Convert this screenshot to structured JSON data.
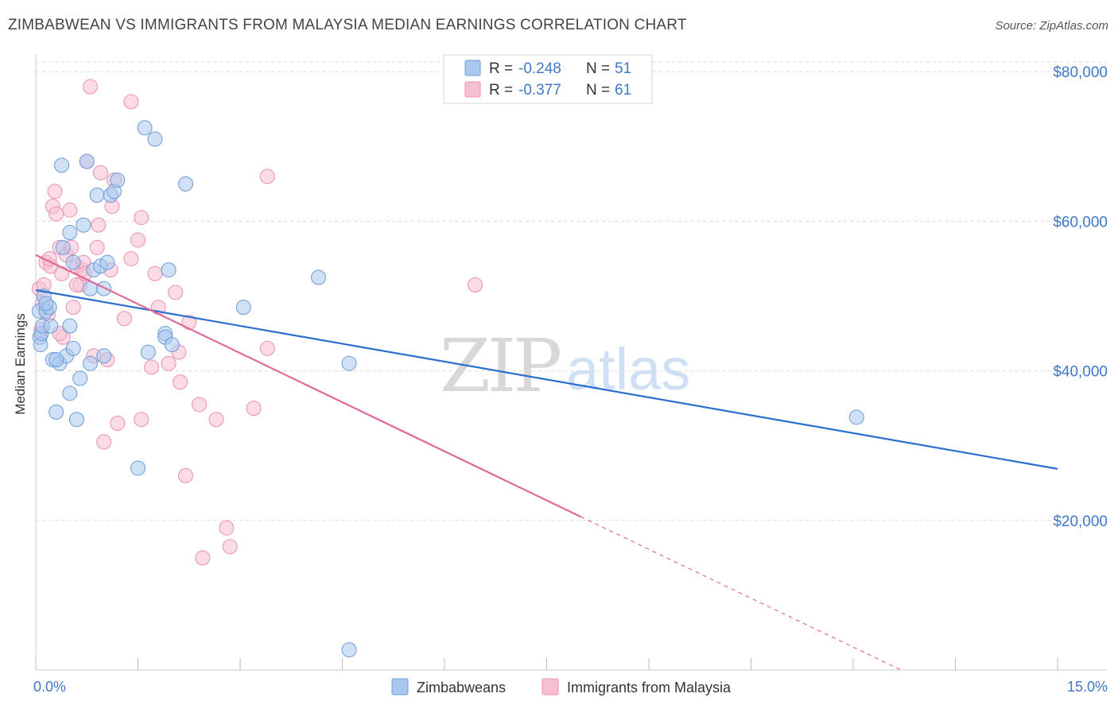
{
  "title": "ZIMBABWEAN VS IMMIGRANTS FROM MALAYSIA MEDIAN EARNINGS CORRELATION CHART",
  "source": "Source: ZipAtlas.com",
  "watermark": {
    "zip": "ZIP",
    "atlas": "atlas"
  },
  "colors": {
    "blue_fill": "#a9c8ef",
    "blue_stroke": "#6c9bd8",
    "blue_line": "#2a6fcf",
    "pink_fill": "#f7c0d2",
    "pink_stroke": "#ec8fb0",
    "pink_line": "#e0699a",
    "tick_label": "#3f78c8",
    "grid": "#d9d9d9"
  },
  "legend_top": {
    "rows": [
      {
        "r_label": "R =",
        "r_value": "-0.248",
        "n_label": "N =",
        "n_value": "51"
      },
      {
        "r_label": "R =",
        "r_value": "-0.377",
        "n_label": "N =",
        "n_value": "61"
      }
    ]
  },
  "legend_bottom": [
    "Zimbabweans",
    "Immigrants from Malaysia"
  ],
  "chart_data": {
    "type": "scatter",
    "title": "ZIMBABWEAN VS IMMIGRANTS FROM MALAYSIA MEDIAN EARNINGS CORRELATION CHART",
    "xlabel": "",
    "ylabel": "Median Earnings",
    "xlim": [
      0,
      15
    ],
    "ylim": [
      0,
      83000
    ],
    "x_tick_labels": [
      "0.0%",
      "15.0%"
    ],
    "y_ticks": [
      20000,
      40000,
      60000,
      80000
    ],
    "y_tick_labels": [
      "$20,000",
      "$40,000",
      "$60,000",
      "$80,000"
    ],
    "grid": true,
    "legend_position": "top-center",
    "series": [
      {
        "name": "Zimbabweans",
        "r": -0.248,
        "n": 51,
        "trend": {
          "x": [
            0,
            15
          ],
          "y": [
            50800,
            26900
          ]
        },
        "points": [
          [
            0.05,
            48000
          ],
          [
            0.06,
            44500
          ],
          [
            0.07,
            43500
          ],
          [
            0.08,
            45000
          ],
          [
            0.1,
            46000
          ],
          [
            0.12,
            50000
          ],
          [
            0.15,
            48000
          ],
          [
            0.2,
            48500
          ],
          [
            0.22,
            46000
          ],
          [
            0.25,
            41500
          ],
          [
            0.3,
            34500
          ],
          [
            0.35,
            41000
          ],
          [
            0.38,
            67500
          ],
          [
            0.4,
            56500
          ],
          [
            0.45,
            42000
          ],
          [
            0.5,
            46000
          ],
          [
            0.5,
            37000
          ],
          [
            0.55,
            43000
          ],
          [
            0.5,
            58500
          ],
          [
            0.55,
            54500
          ],
          [
            0.6,
            33500
          ],
          [
            0.65,
            39000
          ],
          [
            0.7,
            59500
          ],
          [
            0.75,
            68000
          ],
          [
            0.8,
            51000
          ],
          [
            0.8,
            41000
          ],
          [
            0.85,
            53500
          ],
          [
            0.9,
            63500
          ],
          [
            0.95,
            54000
          ],
          [
            1.0,
            51000
          ],
          [
            1.0,
            42000
          ],
          [
            1.05,
            54500
          ],
          [
            1.1,
            63500
          ],
          [
            1.15,
            64000
          ],
          [
            1.2,
            65500
          ],
          [
            1.5,
            27000
          ],
          [
            1.6,
            72500
          ],
          [
            1.65,
            42500
          ],
          [
            1.75,
            71000
          ],
          [
            1.9,
            45000
          ],
          [
            1.9,
            44500
          ],
          [
            1.95,
            53500
          ],
          [
            2.0,
            43500
          ],
          [
            2.2,
            65000
          ],
          [
            3.05,
            48500
          ],
          [
            4.15,
            52500
          ],
          [
            4.6,
            2700
          ],
          [
            4.6,
            41000
          ],
          [
            12.05,
            33800
          ],
          [
            0.15,
            49000
          ],
          [
            0.3,
            41500
          ]
        ]
      },
      {
        "name": "Immigrants from Malaysia",
        "r": -0.377,
        "n": 61,
        "trend": {
          "x": [
            0,
            8.0
          ],
          "y": [
            55500,
            20500
          ]
        },
        "trend_dashed": {
          "x": [
            8.0,
            15
          ],
          "y": [
            20500,
            -10000
          ]
        },
        "points": [
          [
            0.05,
            51000
          ],
          [
            0.08,
            45500
          ],
          [
            0.1,
            49000
          ],
          [
            0.12,
            51500
          ],
          [
            0.15,
            54500
          ],
          [
            0.18,
            47500
          ],
          [
            0.22,
            54000
          ],
          [
            0.25,
            62000
          ],
          [
            0.28,
            64000
          ],
          [
            0.3,
            61000
          ],
          [
            0.35,
            56500
          ],
          [
            0.38,
            53000
          ],
          [
            0.4,
            44500
          ],
          [
            0.45,
            55500
          ],
          [
            0.5,
            61500
          ],
          [
            0.52,
            56500
          ],
          [
            0.55,
            48500
          ],
          [
            0.6,
            54000
          ],
          [
            0.65,
            51500
          ],
          [
            0.68,
            53500
          ],
          [
            0.7,
            54500
          ],
          [
            0.72,
            53000
          ],
          [
            0.75,
            68000
          ],
          [
            0.8,
            78000
          ],
          [
            0.85,
            42000
          ],
          [
            0.9,
            56500
          ],
          [
            0.92,
            59500
          ],
          [
            0.95,
            66500
          ],
          [
            1.0,
            30500
          ],
          [
            1.05,
            41500
          ],
          [
            1.1,
            53500
          ],
          [
            1.12,
            62000
          ],
          [
            1.15,
            65500
          ],
          [
            1.2,
            33000
          ],
          [
            1.3,
            47000
          ],
          [
            1.4,
            76000
          ],
          [
            1.4,
            55000
          ],
          [
            1.5,
            57500
          ],
          [
            1.55,
            60500
          ],
          [
            1.55,
            33500
          ],
          [
            1.7,
            40500
          ],
          [
            1.75,
            53000
          ],
          [
            1.8,
            48500
          ],
          [
            1.95,
            41000
          ],
          [
            2.05,
            50500
          ],
          [
            2.1,
            42500
          ],
          [
            2.12,
            38500
          ],
          [
            2.2,
            26000
          ],
          [
            2.25,
            46500
          ],
          [
            2.4,
            35500
          ],
          [
            2.45,
            15000
          ],
          [
            2.65,
            33500
          ],
          [
            2.8,
            19000
          ],
          [
            2.85,
            16500
          ],
          [
            3.2,
            35000
          ],
          [
            3.4,
            66000
          ],
          [
            3.4,
            43000
          ],
          [
            6.45,
            51500
          ],
          [
            0.2,
            55000
          ],
          [
            0.35,
            45000
          ],
          [
            0.6,
            51500
          ]
        ]
      }
    ]
  }
}
